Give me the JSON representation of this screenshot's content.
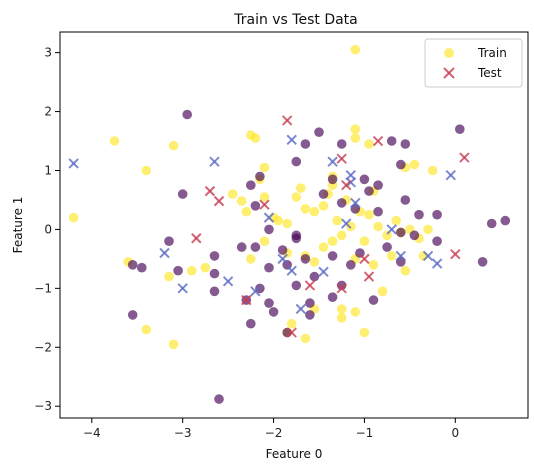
{
  "chart_data": {
    "type": "scatter",
    "title": "Train vs Test Data",
    "xlabel": "Feature 0",
    "ylabel": "Feature 1",
    "xlim": [
      -4.35,
      0.8
    ],
    "ylim": [
      -3.2,
      3.35
    ],
    "xticks": [
      -4,
      -3,
      -2,
      -1,
      0
    ],
    "yticks": [
      -3,
      -2,
      -1,
      0,
      1,
      2,
      3
    ],
    "legend_position": "top-right",
    "grid": false,
    "colors": {
      "class_0": "#440154",
      "class_1": "#fde725",
      "test_class_0": "#5b6cc4",
      "test_class_1": "#c73e54"
    },
    "series": [
      {
        "name": "Train",
        "marker": "circle",
        "class_1_points": [
          [
            -1.1,
            3.05
          ],
          [
            -3.75,
            1.5
          ],
          [
            -3.4,
            1.0
          ],
          [
            -3.1,
            1.42
          ],
          [
            -2.25,
            1.6
          ],
          [
            -2.2,
            1.55
          ],
          [
            -2.1,
            1.05
          ],
          [
            -1.35,
            0.9
          ],
          [
            -1.1,
            1.7
          ],
          [
            -1.1,
            1.55
          ],
          [
            -0.95,
            1.45
          ],
          [
            -0.55,
            1.05
          ],
          [
            -0.45,
            1.1
          ],
          [
            -0.25,
            1.0
          ],
          [
            -4.2,
            0.2
          ],
          [
            -3.6,
            -0.55
          ],
          [
            -2.45,
            0.6
          ],
          [
            -2.35,
            0.48
          ],
          [
            -2.3,
            0.3
          ],
          [
            -2.1,
            0.55
          ],
          [
            -2.0,
            0.2
          ],
          [
            -1.95,
            0.15
          ],
          [
            -1.85,
            0.1
          ],
          [
            -1.75,
            0.55
          ],
          [
            -1.65,
            0.35
          ],
          [
            -1.55,
            0.3
          ],
          [
            -1.45,
            0.4
          ],
          [
            -1.4,
            0.6
          ],
          [
            -1.3,
            0.15
          ],
          [
            -1.2,
            0.5
          ],
          [
            -1.15,
            0.05
          ],
          [
            -1.05,
            0.3
          ],
          [
            -0.95,
            0.25
          ],
          [
            -0.85,
            0.05
          ],
          [
            -0.75,
            -0.1
          ],
          [
            -0.65,
            0.15
          ],
          [
            -0.5,
            0.0
          ],
          [
            -0.4,
            -0.15
          ],
          [
            -0.3,
            0.0
          ],
          [
            -2.25,
            -0.5
          ],
          [
            -2.1,
            -0.2
          ],
          [
            -1.85,
            -0.4
          ],
          [
            -1.65,
            -0.45
          ],
          [
            -1.55,
            -0.55
          ],
          [
            -1.45,
            -0.3
          ],
          [
            -1.35,
            -0.2
          ],
          [
            -1.25,
            -0.1
          ],
          [
            -1.1,
            -0.5
          ],
          [
            -1.0,
            -0.2
          ],
          [
            -0.9,
            -0.6
          ],
          [
            -0.7,
            -0.45
          ],
          [
            -0.55,
            -0.7
          ],
          [
            -2.9,
            -0.7
          ],
          [
            -2.75,
            -0.65
          ],
          [
            -1.55,
            -1.35
          ],
          [
            -1.25,
            -1.35
          ],
          [
            -1.1,
            -1.4
          ],
          [
            -1.0,
            -1.75
          ],
          [
            -0.8,
            -1.05
          ],
          [
            -1.25,
            -1.5
          ],
          [
            -1.8,
            -1.6
          ],
          [
            -1.85,
            -1.75
          ],
          [
            -1.65,
            -1.85
          ],
          [
            -3.15,
            -0.8
          ],
          [
            -3.4,
            -1.7
          ],
          [
            -3.1,
            -1.95
          ],
          [
            -2.15,
            0.85
          ],
          [
            -1.35,
            0.75
          ],
          [
            -0.9,
            0.65
          ],
          [
            -0.6,
            -0.05
          ],
          [
            -0.35,
            -0.45
          ],
          [
            -1.7,
            0.7
          ]
        ],
        "class_0_points": [
          [
            -2.95,
            1.95
          ],
          [
            -1.65,
            1.45
          ],
          [
            -1.5,
            1.65
          ],
          [
            -1.25,
            1.45
          ],
          [
            -0.7,
            1.5
          ],
          [
            -0.55,
            1.45
          ],
          [
            -0.6,
            1.1
          ],
          [
            0.05,
            1.7
          ],
          [
            -1.75,
            1.15
          ],
          [
            -2.15,
            0.9
          ],
          [
            -2.25,
            0.75
          ],
          [
            -1.35,
            0.85
          ],
          [
            -1.0,
            0.85
          ],
          [
            -0.95,
            0.65
          ],
          [
            -0.85,
            0.75
          ],
          [
            -3.0,
            0.6
          ],
          [
            -2.2,
            0.4
          ],
          [
            -1.45,
            0.6
          ],
          [
            -1.25,
            0.45
          ],
          [
            -1.1,
            0.35
          ],
          [
            -0.85,
            0.3
          ],
          [
            -0.55,
            0.5
          ],
          [
            -0.4,
            0.25
          ],
          [
            -0.2,
            0.25
          ],
          [
            0.4,
            0.1
          ],
          [
            0.55,
            0.15
          ],
          [
            -3.55,
            -0.6
          ],
          [
            -3.45,
            -0.65
          ],
          [
            -3.15,
            -0.2
          ],
          [
            -3.05,
            -0.7
          ],
          [
            -2.65,
            -0.45
          ],
          [
            -2.35,
            -0.3
          ],
          [
            -2.2,
            -0.3
          ],
          [
            -2.05,
            0.0
          ],
          [
            -2.05,
            -0.65
          ],
          [
            -1.9,
            -0.35
          ],
          [
            -1.85,
            -0.6
          ],
          [
            -1.75,
            -0.15
          ],
          [
            -1.75,
            -0.1
          ],
          [
            -1.65,
            -0.5
          ],
          [
            -1.55,
            -0.8
          ],
          [
            -1.35,
            -0.45
          ],
          [
            -1.15,
            -0.6
          ],
          [
            -1.05,
            -0.4
          ],
          [
            -0.75,
            -0.3
          ],
          [
            -0.6,
            -0.05
          ],
          [
            -0.45,
            -0.1
          ],
          [
            -0.2,
            -0.2
          ],
          [
            -3.55,
            -1.45
          ],
          [
            -2.65,
            -1.05
          ],
          [
            -2.65,
            -0.75
          ],
          [
            -2.3,
            -1.2
          ],
          [
            -2.25,
            -1.6
          ],
          [
            -2.05,
            -1.25
          ],
          [
            -1.85,
            -1.75
          ],
          [
            -1.6,
            -1.45
          ],
          [
            -1.6,
            -1.25
          ],
          [
            -1.25,
            -0.95
          ],
          [
            -0.9,
            -1.2
          ],
          [
            -0.6,
            -0.55
          ],
          [
            0.3,
            -0.55
          ],
          [
            -2.6,
            -2.88
          ],
          [
            -2.15,
            -1.0
          ],
          [
            -1.75,
            -0.95
          ],
          [
            -1.35,
            -1.15
          ],
          [
            -2.0,
            -1.4
          ]
        ]
      },
      {
        "name": "Test",
        "marker": "x",
        "class_0_points": [
          [
            -4.2,
            1.12
          ],
          [
            -2.65,
            1.15
          ],
          [
            -1.8,
            1.52
          ],
          [
            -1.35,
            1.15
          ],
          [
            -0.05,
            0.92
          ],
          [
            -1.15,
            0.92
          ],
          [
            -1.15,
            0.8
          ],
          [
            -2.05,
            0.2
          ],
          [
            -1.1,
            0.45
          ],
          [
            -1.2,
            0.1
          ],
          [
            -3.2,
            -0.4
          ],
          [
            -1.9,
            -0.5
          ],
          [
            -1.8,
            -0.7
          ],
          [
            -1.45,
            -0.72
          ],
          [
            -2.5,
            -0.88
          ],
          [
            -3.0,
            -1.0
          ],
          [
            -2.2,
            -1.05
          ],
          [
            -1.7,
            -1.35
          ],
          [
            -0.6,
            -0.45
          ],
          [
            -0.3,
            -0.45
          ],
          [
            -0.2,
            -0.58
          ],
          [
            -0.7,
            0.0
          ]
        ],
        "class_1_points": [
          [
            -1.85,
            1.85
          ],
          [
            -0.85,
            1.5
          ],
          [
            -1.25,
            1.2
          ],
          [
            0.1,
            1.22
          ],
          [
            -2.7,
            0.65
          ],
          [
            -2.6,
            0.48
          ],
          [
            -1.2,
            0.75
          ],
          [
            -2.1,
            0.42
          ],
          [
            -2.85,
            -0.15
          ],
          [
            -1.6,
            -0.95
          ],
          [
            -1.0,
            -0.5
          ],
          [
            -0.95,
            -0.8
          ],
          [
            0.0,
            -0.42
          ],
          [
            -2.3,
            -1.2
          ],
          [
            -1.8,
            -1.75
          ],
          [
            -1.25,
            -1.0
          ]
        ]
      }
    ]
  }
}
